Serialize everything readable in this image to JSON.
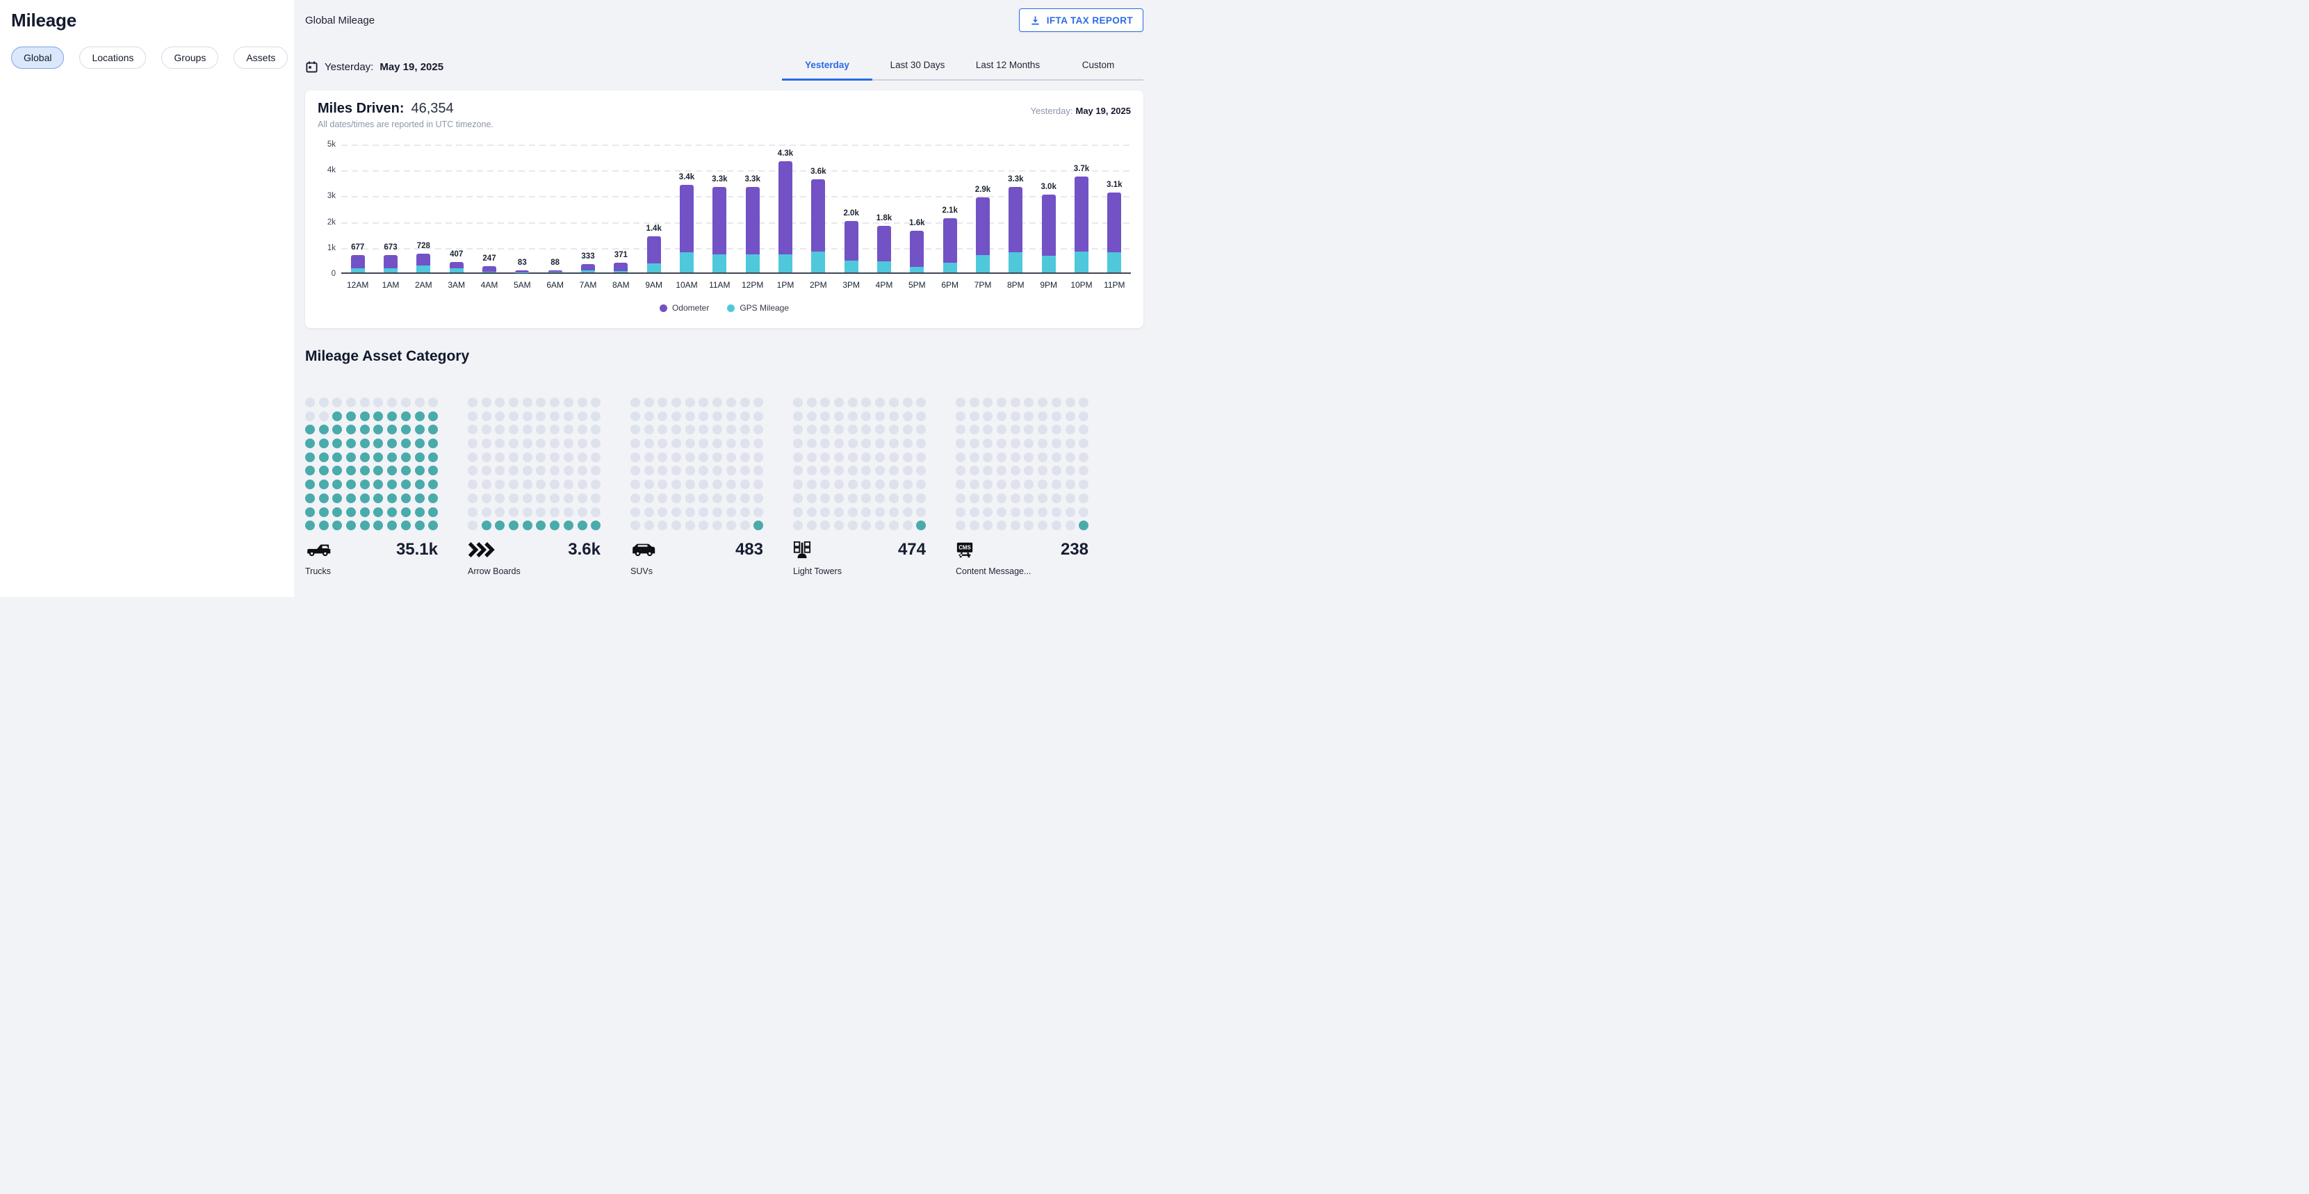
{
  "theme": {
    "accent_blue": "#2a6ae9",
    "odometer_purple": "#7252c5",
    "gps_teal": "#4fc8dc"
  },
  "sidebar": {
    "title": "Mileage",
    "tabs": [
      {
        "label": "Global",
        "active": true
      },
      {
        "label": "Locations",
        "active": false
      },
      {
        "label": "Groups",
        "active": false
      },
      {
        "label": "Assets",
        "active": false
      }
    ]
  },
  "header": {
    "title": "Global Mileage",
    "ifta_button_label": "IFTA TAX REPORT",
    "ifta_button_icon": "download-icon"
  },
  "date_bar": {
    "icon": "calendar-icon",
    "prefix": "Yesterday:",
    "date": "May 19, 2025"
  },
  "period_tabs": {
    "tabs": [
      {
        "label": "Yesterday",
        "active": true
      },
      {
        "label": "Last 30 Days",
        "active": false
      },
      {
        "label": "Last 12 Months",
        "active": false
      },
      {
        "label": "Custom",
        "active": false
      }
    ]
  },
  "miles_card": {
    "title": "Miles Driven:",
    "total": "46,354",
    "subtitle": "All dates/times are reported in UTC timezone.",
    "period_prefix": "Yesterday:",
    "period_date": "May 19, 2025"
  },
  "chart_data": {
    "type": "bar",
    "stacked": true,
    "title": "Miles Driven: 46,354",
    "categories": [
      "12AM",
      "1AM",
      "2AM",
      "3AM",
      "4AM",
      "5AM",
      "6AM",
      "7AM",
      "8AM",
      "9AM",
      "10AM",
      "11AM",
      "12PM",
      "1PM",
      "2PM",
      "3PM",
      "4PM",
      "5PM",
      "6PM",
      "7PM",
      "8PM",
      "9PM",
      "10PM",
      "11PM"
    ],
    "series": [
      {
        "name": "GPS Mileage",
        "color": "#4fc8dc",
        "values": [
          170,
          150,
          270,
          150,
          35,
          8,
          30,
          90,
          60,
          350,
          770,
          690,
          690,
          710,
          820,
          460,
          440,
          220,
          370,
          660,
          770,
          640,
          800,
          790
        ]
      },
      {
        "name": "Odometer",
        "color": "#7252c5",
        "values": [
          507,
          523,
          458,
          257,
          212,
          75,
          58,
          243,
          311,
          1050,
          2630,
          2610,
          2610,
          3590,
          2780,
          1540,
          1360,
          1380,
          1730,
          2240,
          2530,
          2360,
          2900,
          2310
        ]
      }
    ],
    "totals": [
      677,
      673,
      728,
      407,
      247,
      83,
      88,
      333,
      371,
      1400,
      3400,
      3300,
      3300,
      4300,
      3600,
      2000,
      1800,
      1600,
      2100,
      2900,
      3300,
      3000,
      3700,
      3100
    ],
    "bar_labels": [
      "677",
      "673",
      "728",
      "407",
      "247",
      "83",
      "88",
      "333",
      "371",
      "1.4k",
      "3.4k",
      "3.3k",
      "3.3k",
      "4.3k",
      "3.6k",
      "2.0k",
      "1.8k",
      "1.6k",
      "2.1k",
      "2.9k",
      "3.3k",
      "3.0k",
      "3.7k",
      "3.1k"
    ],
    "ylim": [
      0,
      5000
    ],
    "yticks": [
      "0",
      "1k",
      "2k",
      "3k",
      "4k",
      "5k"
    ],
    "grid": "horizontal-dashed",
    "legend": [
      "Odometer",
      "GPS Mileage"
    ],
    "legend_position": "bottom-center"
  },
  "asset_category": {
    "title": "Mileage Asset Category",
    "grid": {
      "rows": 10,
      "cols": 10
    },
    "colors": {
      "filled": "#4aabab",
      "empty": "#dee2ec"
    },
    "items": [
      {
        "label": "Trucks",
        "value": "35.1k",
        "filled_dots": 88,
        "icon": "pickup-truck"
      },
      {
        "label": "Arrow Boards",
        "value": "3.6k",
        "filled_dots": 9,
        "icon": "triple-chevron"
      },
      {
        "label": "SUVs",
        "value": "483",
        "filled_dots": 1,
        "icon": "suv"
      },
      {
        "label": "Light Towers",
        "value": "474",
        "filled_dots": 1,
        "icon": "light-tower"
      },
      {
        "label": "Content Message...",
        "value": "238",
        "filled_dots": 1,
        "icon": "cms-sign"
      }
    ]
  }
}
